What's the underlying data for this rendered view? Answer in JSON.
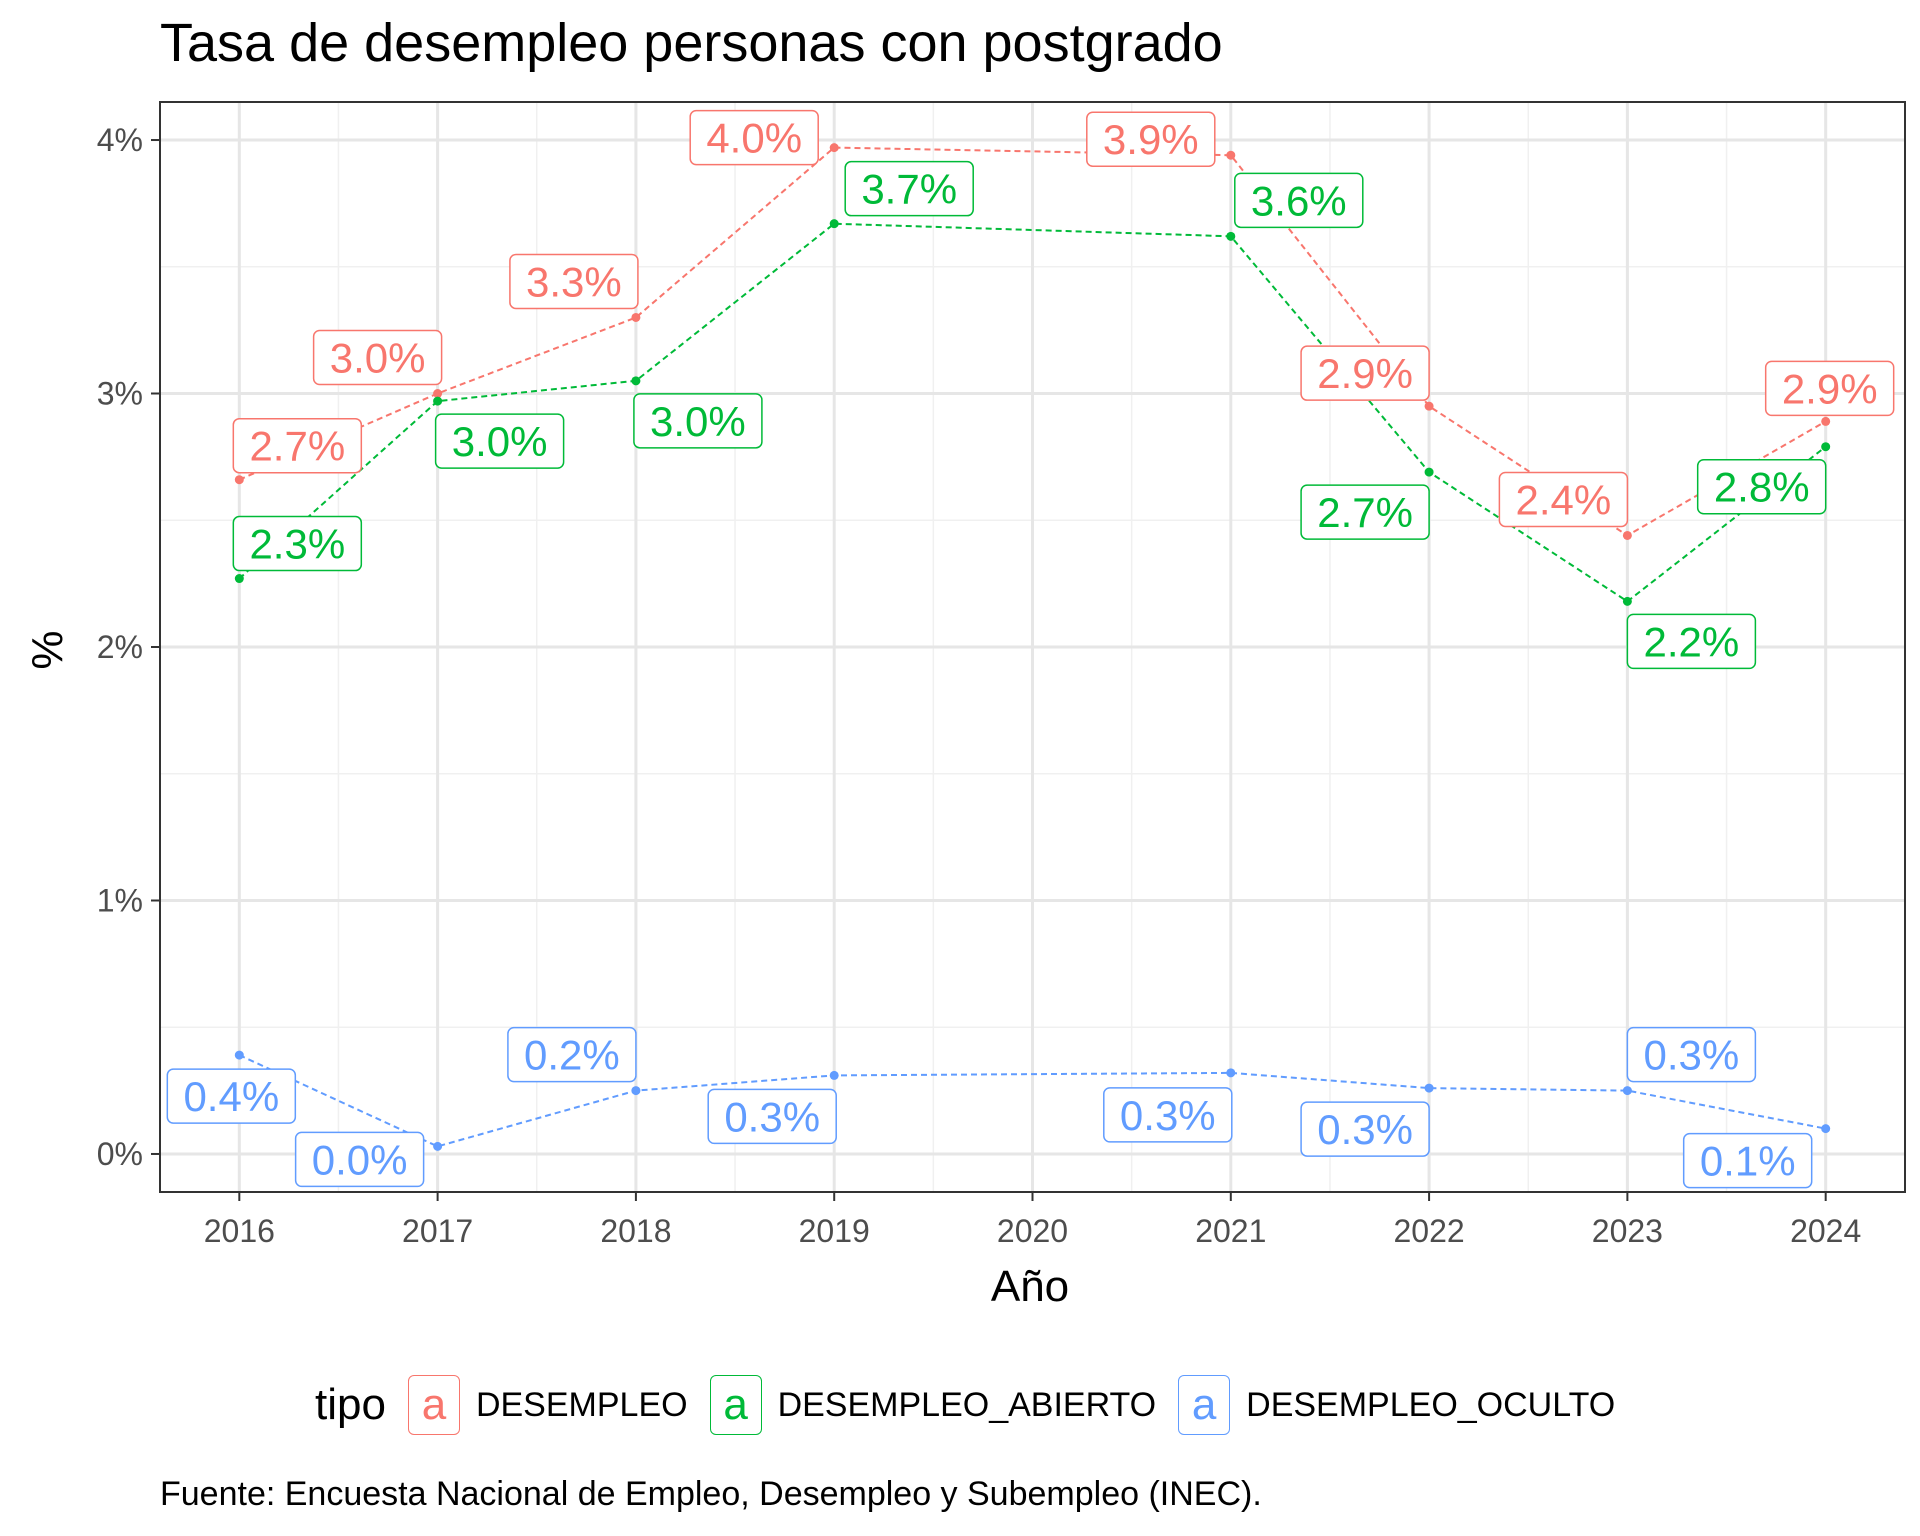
{
  "chart_data": {
    "type": "line",
    "title": "Tasa de desempleo personas con postgrado",
    "xlabel": "Año",
    "ylabel": "%",
    "caption": "Fuente: Encuesta Nacional de Empleo, Desempleo y Subempleo (INEC).",
    "x": [
      2016,
      2017,
      2018,
      2019,
      2021,
      2022,
      2023,
      2024
    ],
    "x_ticks": [
      "2016",
      "2017",
      "2018",
      "2019",
      "2020",
      "2021",
      "2022",
      "2023",
      "2024"
    ],
    "xlim": [
      2015.6,
      2024.4
    ],
    "ylim": [
      -0.15,
      4.15
    ],
    "y_ticks": [
      0,
      1,
      2,
      3,
      4
    ],
    "y_tick_labels": [
      "0%",
      "1%",
      "2%",
      "3%",
      "4%"
    ],
    "grid": true,
    "legend": {
      "title": "tipo",
      "position": "bottom",
      "key_glyph": "a"
    },
    "series": [
      {
        "name": "DESEMPLEO",
        "color": "#F8766D",
        "values": [
          2.66,
          3.0,
          3.3,
          3.97,
          3.94,
          2.95,
          2.44,
          2.89
        ],
        "labels": [
          "2.7%",
          "3.0%",
          "3.3%",
          "4.0%",
          "3.9%",
          "2.9%",
          "2.4%",
          "2.9%"
        ]
      },
      {
        "name": "DESEMPLEO_ABIERTO",
        "color": "#00BA38",
        "values": [
          2.27,
          2.97,
          3.05,
          3.67,
          3.62,
          2.69,
          2.18,
          2.79
        ],
        "labels": [
          "2.3%",
          "3.0%",
          "3.0%",
          "3.7%",
          "3.6%",
          "2.7%",
          "2.2%",
          "2.8%"
        ]
      },
      {
        "name": "DESEMPLEO_OCULTO",
        "color": "#619CFF",
        "values": [
          0.39,
          0.03,
          0.25,
          0.31,
          0.32,
          0.26,
          0.25,
          0.1
        ],
        "labels": [
          "0.4%",
          "0.0%",
          "0.2%",
          "0.3%",
          "0.3%",
          "0.3%",
          "0.3%",
          "0.1%"
        ]
      }
    ]
  }
}
